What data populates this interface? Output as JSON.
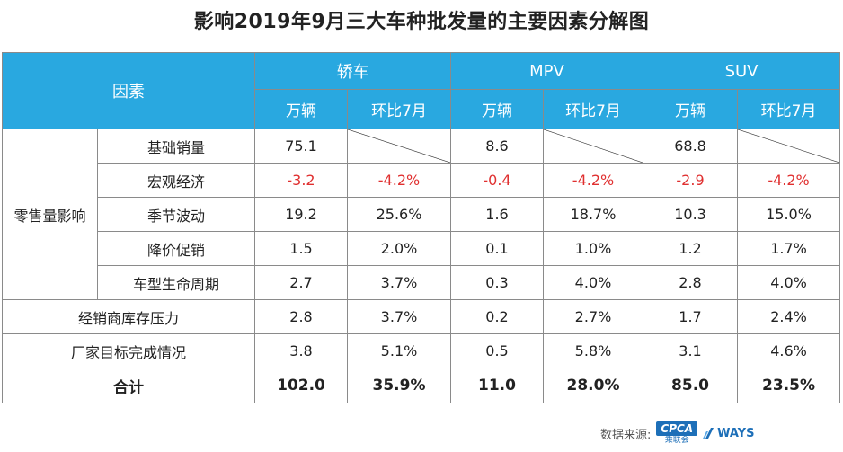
{
  "title": "影响2019年9月三大车种批发量的主要因素分解图",
  "header": {
    "factor": "因素",
    "groups": [
      "轿车",
      "MPV",
      "SUV"
    ],
    "sub": [
      "万辆",
      "环比7月",
      "万辆",
      "环比7月",
      "万辆",
      "环比7月"
    ]
  },
  "group_label": "零售量影响",
  "rows": [
    {
      "label": "基础销量",
      "cells": [
        "75.1",
        "",
        "8.6",
        "",
        "68.8",
        ""
      ]
    },
    {
      "label": "宏观经济",
      "cells": [
        "-3.2",
        "-4.2%",
        "-0.4",
        "-4.2%",
        "-2.9",
        "-4.2%"
      ]
    },
    {
      "label": "季节波动",
      "cells": [
        "19.2",
        "25.6%",
        "1.6",
        "18.7%",
        "10.3",
        "15.0%"
      ]
    },
    {
      "label": "降价促销",
      "cells": [
        "1.5",
        "2.0%",
        "0.1",
        "1.0%",
        "1.2",
        "1.7%"
      ]
    },
    {
      "label": "车型生命周期",
      "cells": [
        "2.7",
        "3.7%",
        "0.3",
        "4.0%",
        "2.8",
        "4.0%"
      ]
    },
    {
      "label": "经销商库存压力",
      "cells": [
        "2.8",
        "3.7%",
        "0.2",
        "2.7%",
        "1.7",
        "2.4%"
      ]
    },
    {
      "label": "厂家目标完成情况",
      "cells": [
        "3.8",
        "5.1%",
        "0.5",
        "5.8%",
        "3.1",
        "4.6%"
      ]
    },
    {
      "label": "合计",
      "cells": [
        "102.0",
        "35.9%",
        "11.0",
        "28.0%",
        "85.0",
        "23.5%"
      ]
    }
  ],
  "source": {
    "label": "数据来源:",
    "cpca": "CPCA",
    "cpca_sub": "乘联会",
    "ways": "WAYS"
  },
  "colors": {
    "header_bg": "#29a8e0",
    "negative": "#e03030"
  }
}
